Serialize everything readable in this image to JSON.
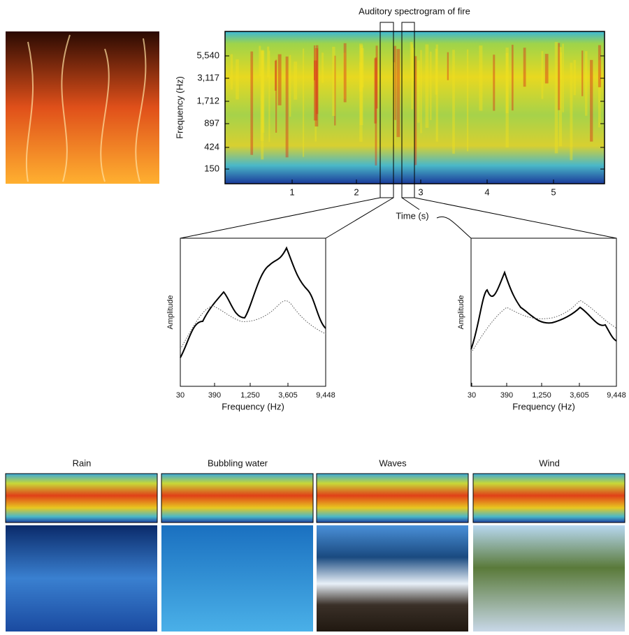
{
  "main_panel": {
    "title": "Auditory spectrogram of fire",
    "y_label": "Frequency (Hz)",
    "y_ticks": [
      "5,540",
      "3,117",
      "1,712",
      "897",
      "424",
      "150"
    ],
    "x_label": "Time (s)",
    "x_ticks": [
      "1",
      "2",
      "3",
      "4",
      "5"
    ]
  },
  "zoom_panels": [
    {
      "y_label": "Amplitude",
      "x_label": "Frequency (Hz)",
      "x_ticks": [
        "30",
        "390",
        "1,250",
        "3,605",
        "9,448"
      ]
    },
    {
      "y_label": "Amplitude",
      "x_label": "Frequency (Hz)",
      "x_ticks": [
        "30",
        "390",
        "1,250",
        "3,605",
        "9,448"
      ]
    }
  ],
  "examples": [
    {
      "label": "Rain"
    },
    {
      "label": "Bubbling water"
    },
    {
      "label": "Waves"
    },
    {
      "label": "Wind"
    }
  ]
}
